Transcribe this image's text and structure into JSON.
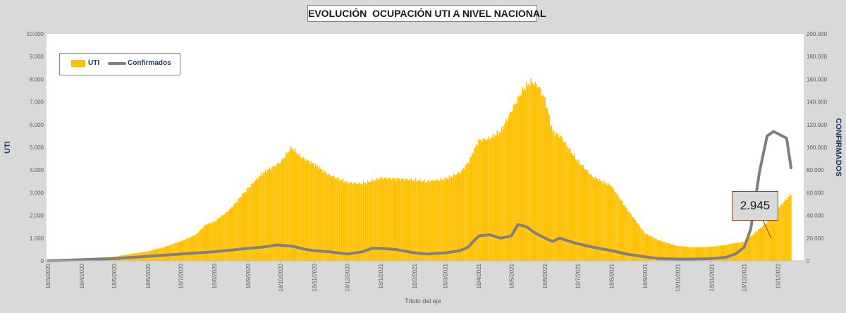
{
  "chart_data": {
    "type": "bar+line",
    "title": "EVOLUCIÓN  OCUPACIÓN UTI A NIVEL NACIONAL",
    "xlabel": "Título del eje",
    "ylabel_left": "UTI",
    "ylabel_right": "CONFIRMADOS",
    "ylim_left": [
      0,
      10000
    ],
    "ylim_right": [
      0,
      200000
    ],
    "yticks_left": [
      "0",
      "1.000",
      "2.000",
      "3.000",
      "4.000",
      "5.000",
      "6.000",
      "7.000",
      "8.000",
      "9.000",
      "10.000"
    ],
    "yticks_right": [
      "0",
      "20.000",
      "40.000",
      "60.000",
      "80.000",
      "100.000",
      "120.000",
      "140.000",
      "160.000",
      "180.000",
      "200.000"
    ],
    "x_start": "2020-03-18",
    "x_end": "2022-01-30",
    "xticks": [
      "18/3/2020",
      "18/4/2020",
      "18/5/2020",
      "18/6/2020",
      "18/7/2020",
      "18/8/2020",
      "18/9/2020",
      "18/10/2020",
      "18/11/2020",
      "18/12/2020",
      "18/1/2021",
      "18/2/2021",
      "18/3/2021",
      "18/4/2021",
      "18/5/2021",
      "18/6/2021",
      "18/7/2021",
      "18/8/2021",
      "18/9/2021",
      "18/10/2021",
      "18/11/2021",
      "18/12/2021",
      "18/1/2022"
    ],
    "series": [
      {
        "name": "UTI",
        "kind": "bar",
        "color": "#ffc000",
        "points": [
          [
            "2020-03-18",
            5
          ],
          [
            "2020-04-18",
            110
          ],
          [
            "2020-05-18",
            180
          ],
          [
            "2020-06-05",
            330
          ],
          [
            "2020-06-18",
            420
          ],
          [
            "2020-07-05",
            640
          ],
          [
            "2020-07-18",
            860
          ],
          [
            "2020-08-01",
            1150
          ],
          [
            "2020-08-10",
            1600
          ],
          [
            "2020-08-18",
            1720
          ],
          [
            "2020-09-01",
            2250
          ],
          [
            "2020-09-18",
            3200
          ],
          [
            "2020-10-01",
            3850
          ],
          [
            "2020-10-18",
            4350
          ],
          [
            "2020-10-28",
            5000
          ],
          [
            "2020-11-05",
            4600
          ],
          [
            "2020-11-18",
            4250
          ],
          [
            "2020-12-01",
            3800
          ],
          [
            "2020-12-18",
            3450
          ],
          [
            "2021-01-01",
            3400
          ],
          [
            "2021-01-18",
            3650
          ],
          [
            "2021-02-01",
            3620
          ],
          [
            "2021-02-18",
            3560
          ],
          [
            "2021-03-01",
            3500
          ],
          [
            "2021-03-18",
            3600
          ],
          [
            "2021-04-01",
            3900
          ],
          [
            "2021-04-08",
            4300
          ],
          [
            "2021-04-18",
            5300
          ],
          [
            "2021-04-28",
            5400
          ],
          [
            "2021-05-08",
            5700
          ],
          [
            "2021-05-18",
            6600
          ],
          [
            "2021-05-28",
            7500
          ],
          [
            "2021-06-05",
            7900
          ],
          [
            "2021-06-12",
            7700
          ],
          [
            "2021-06-18",
            7100
          ],
          [
            "2021-06-25",
            5700
          ],
          [
            "2021-07-02",
            5500
          ],
          [
            "2021-07-18",
            4400
          ],
          [
            "2021-08-01",
            3700
          ],
          [
            "2021-08-18",
            3300
          ],
          [
            "2021-09-01",
            2300
          ],
          [
            "2021-09-18",
            1200
          ],
          [
            "2021-10-01",
            900
          ],
          [
            "2021-10-18",
            650
          ],
          [
            "2021-11-01",
            600
          ],
          [
            "2021-11-18",
            620
          ],
          [
            "2021-12-01",
            700
          ],
          [
            "2021-12-18",
            850
          ],
          [
            "2022-01-01",
            1400
          ],
          [
            "2022-01-10",
            1800
          ],
          [
            "2022-01-18",
            2300
          ],
          [
            "2022-01-30",
            2945
          ]
        ]
      },
      {
        "name": "Confirmados",
        "kind": "line",
        "axis": "right",
        "color": "#808080",
        "points": [
          [
            "2020-03-18",
            0
          ],
          [
            "2020-04-18",
            1000
          ],
          [
            "2020-05-18",
            2000
          ],
          [
            "2020-06-18",
            4000
          ],
          [
            "2020-07-18",
            6000
          ],
          [
            "2020-08-18",
            8000
          ],
          [
            "2020-09-18",
            11000
          ],
          [
            "2020-10-01",
            12000
          ],
          [
            "2020-10-15",
            14000
          ],
          [
            "2020-10-28",
            13000
          ],
          [
            "2020-11-10",
            10000
          ],
          [
            "2020-11-18",
            9000
          ],
          [
            "2020-12-01",
            8000
          ],
          [
            "2020-12-18",
            6000
          ],
          [
            "2021-01-01",
            8000
          ],
          [
            "2021-01-10",
            11000
          ],
          [
            "2021-01-18",
            11000
          ],
          [
            "2021-02-01",
            10000
          ],
          [
            "2021-02-18",
            7000
          ],
          [
            "2021-03-01",
            6000
          ],
          [
            "2021-03-18",
            7000
          ],
          [
            "2021-04-01",
            9000
          ],
          [
            "2021-04-08",
            12000
          ],
          [
            "2021-04-18",
            22000
          ],
          [
            "2021-04-28",
            23000
          ],
          [
            "2021-05-08",
            20000
          ],
          [
            "2021-05-18",
            22000
          ],
          [
            "2021-05-24",
            32000
          ],
          [
            "2021-06-01",
            30000
          ],
          [
            "2021-06-08",
            25000
          ],
          [
            "2021-06-18",
            20000
          ],
          [
            "2021-06-25",
            17000
          ],
          [
            "2021-07-01",
            20000
          ],
          [
            "2021-07-18",
            15000
          ],
          [
            "2021-08-01",
            12000
          ],
          [
            "2021-08-18",
            9000
          ],
          [
            "2021-09-01",
            6000
          ],
          [
            "2021-09-18",
            3500
          ],
          [
            "2021-10-01",
            2000
          ],
          [
            "2021-10-18",
            1500
          ],
          [
            "2021-11-01",
            1500
          ],
          [
            "2021-11-18",
            2000
          ],
          [
            "2021-12-01",
            3000
          ],
          [
            "2021-12-10",
            6000
          ],
          [
            "2021-12-18",
            12000
          ],
          [
            "2021-12-24",
            28000
          ],
          [
            "2022-01-01",
            78000
          ],
          [
            "2022-01-08",
            110000
          ],
          [
            "2022-01-14",
            114000
          ],
          [
            "2022-01-20",
            111000
          ],
          [
            "2022-01-26",
            108000
          ],
          [
            "2022-01-30",
            82000
          ]
        ]
      }
    ],
    "annotation": {
      "text": "2.945",
      "refers_to": "UTI",
      "date": "2022-01-30"
    },
    "legend": {
      "position": "top-left",
      "items": [
        "UTI",
        "Confirmados"
      ]
    },
    "grid": false
  }
}
